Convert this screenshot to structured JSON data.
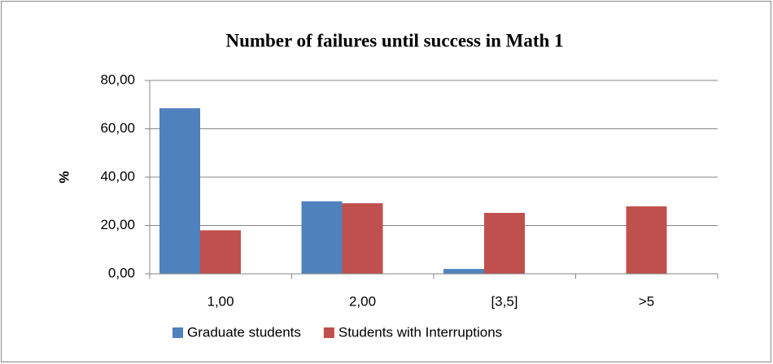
{
  "chart_data": {
    "type": "bar",
    "title": "Number of failures until success in Math 1",
    "ylabel": "%",
    "categories": [
      "1,00",
      "2,00",
      "[3,5]",
      ">5"
    ],
    "series": [
      {
        "name": "Graduate students",
        "color": "#4f81bd",
        "values": [
          68.5,
          30,
          2,
          0
        ]
      },
      {
        "name": "Students with Interruptions",
        "color": "#c0504d",
        "values": [
          18,
          29.2,
          25.2,
          27.9
        ]
      }
    ],
    "ylim": [
      0,
      80
    ],
    "yticks": [
      {
        "value": 0,
        "label": "0,00"
      },
      {
        "value": 20,
        "label": "20,00"
      },
      {
        "value": 40,
        "label": "40,00"
      },
      {
        "value": 60,
        "label": "60,00"
      },
      {
        "value": 80,
        "label": "80,00"
      }
    ],
    "grid": true,
    "legend": "bottom"
  }
}
